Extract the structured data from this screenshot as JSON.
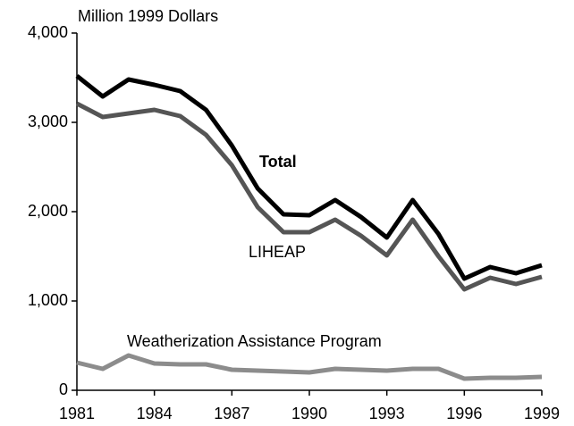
{
  "chart_data": {
    "type": "line",
    "y_axis_label": "Million 1999 Dollars",
    "x": [
      1981,
      1982,
      1983,
      1984,
      1985,
      1986,
      1987,
      1988,
      1989,
      1990,
      1991,
      1992,
      1993,
      1994,
      1995,
      1996,
      1997,
      1998,
      1999
    ],
    "series": [
      {
        "name": "Total",
        "color": "#000000",
        "values": [
          3520,
          3290,
          3480,
          3420,
          3350,
          3140,
          2740,
          2260,
          1970,
          1960,
          2130,
          1940,
          1710,
          2130,
          1750,
          1250,
          1380,
          1310,
          1400
        ]
      },
      {
        "name": "LIHEAP",
        "color": "#555555",
        "values": [
          3210,
          3060,
          3100,
          3140,
          3070,
          2860,
          2520,
          2050,
          1770,
          1770,
          1910,
          1730,
          1510,
          1910,
          1500,
          1130,
          1260,
          1190,
          1270
        ]
      },
      {
        "name": "Weatherization Assistance Program",
        "color": "#8c8c8c",
        "values": [
          310,
          240,
          390,
          300,
          290,
          290,
          230,
          220,
          210,
          200,
          240,
          230,
          220,
          240,
          240,
          130,
          140,
          140,
          150
        ]
      }
    ],
    "xlim": [
      1981,
      1999
    ],
    "xticks": [
      1981,
      1984,
      1987,
      1990,
      1993,
      1996,
      1999
    ],
    "ylim": [
      0,
      4000
    ],
    "yticks": [
      0,
      {
        "value": 1000,
        "label": "1,000"
      },
      {
        "value": 2000,
        "label": "2,000"
      },
      {
        "value": 3000,
        "label": "3,000"
      },
      {
        "value": 4000,
        "label": "4,000"
      }
    ],
    "grid": false
  }
}
